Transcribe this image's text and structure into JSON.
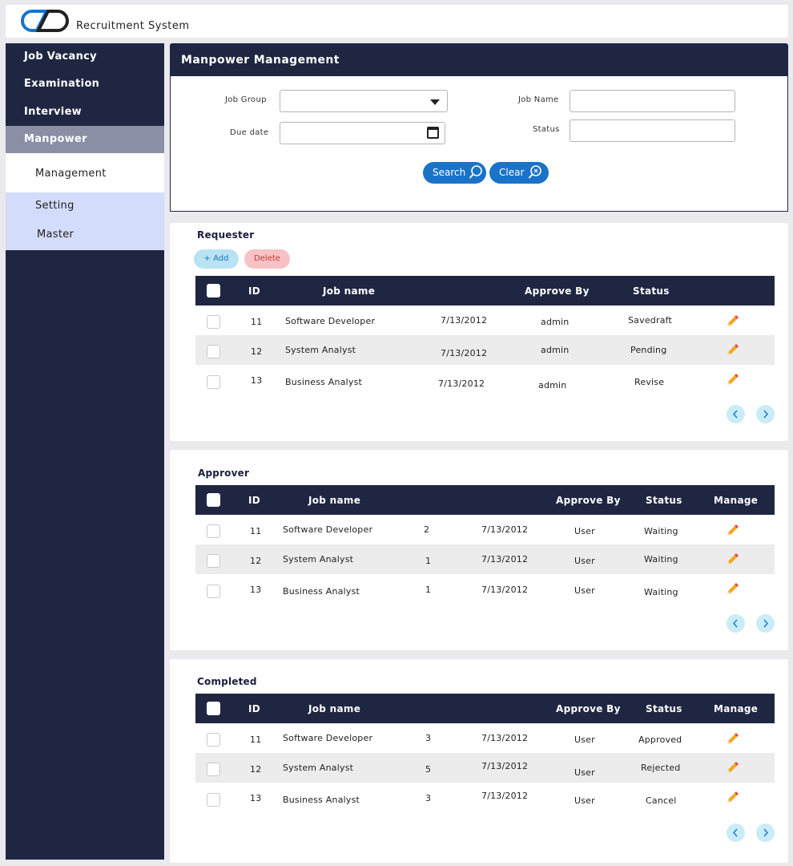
{
  "app": {
    "title": "Recruitment System",
    "logo_icon": "cd-logo-icon"
  },
  "sidebar": {
    "items": [
      {
        "label": "Job Vacancy"
      },
      {
        "label": "Examination"
      },
      {
        "label": "Interview"
      },
      {
        "label": "Manpower Management",
        "active": true
      }
    ],
    "sub_items": [
      {
        "label": "Management",
        "active": true
      },
      {
        "label": "Setting"
      },
      {
        "label": "Master"
      }
    ]
  },
  "search": {
    "title": "Manpower Management",
    "job_group_label": "Job Group",
    "job_group_value": "",
    "job_name_label": "Job Name",
    "job_name_value": "",
    "due_date_label": "Due date",
    "due_date_value": "",
    "status_label": "Status",
    "status_value": "",
    "search_label": "Search",
    "clear_label": "Clear"
  },
  "requester": {
    "title": "Requester",
    "add_label": "+ Add",
    "delete_label": "Delete",
    "columns": {
      "id": "ID",
      "job_name": "Job name",
      "approve_by": "Approve By",
      "status": "Status"
    },
    "rows": [
      {
        "id": "11",
        "job_name": "Software Developer",
        "date": "7/13/2012",
        "approve_by": "admin",
        "status": "Savedraft"
      },
      {
        "id": "12",
        "job_name": "System Analyst",
        "date": "7/13/2012",
        "approve_by": "admin",
        "status": "Pending"
      },
      {
        "id": "13",
        "job_name": "Business Analyst",
        "date": "7/13/2012",
        "approve_by": "admin",
        "status": "Revise"
      }
    ]
  },
  "approver": {
    "title": "Approver",
    "columns": {
      "id": "ID",
      "job_name": "Job name",
      "approve_by": "Approve By",
      "status": "Status",
      "manage": "Manage"
    },
    "rows": [
      {
        "id": "11",
        "job_name": "Software Developer",
        "count": "2",
        "date": "7/13/2012",
        "approve_by": "User",
        "status": "Waiting"
      },
      {
        "id": "12",
        "job_name": "System Analyst",
        "count": "1",
        "date": "7/13/2012",
        "approve_by": "User",
        "status": "Waiting"
      },
      {
        "id": "13",
        "job_name": "Business Analyst",
        "count": "1",
        "date": "7/13/2012",
        "approve_by": "User",
        "status": "Waiting"
      }
    ]
  },
  "completed": {
    "title": "Completed",
    "columns": {
      "id": "ID",
      "job_name": "Job name",
      "approve_by": "Approve By",
      "status": "Status",
      "manage": "Manage"
    },
    "rows": [
      {
        "id": "11",
        "job_name": "Software Developer",
        "count": "3",
        "date": "7/13/2012",
        "approve_by": "User",
        "status": "Approved"
      },
      {
        "id": "12",
        "job_name": "System Analyst",
        "count": "5",
        "date": "7/13/2012",
        "approve_by": "User",
        "status": "Rejected"
      },
      {
        "id": "13",
        "job_name": "Business Analyst",
        "count": "3",
        "date": "7/13/2012",
        "approve_by": "User",
        "status": "Cancel"
      }
    ]
  },
  "colors": {
    "navy": "#1f2642",
    "accent_blue": "#1a73c7",
    "active_nav": "#8a8fa5",
    "submenu": "#d3dcfa"
  }
}
